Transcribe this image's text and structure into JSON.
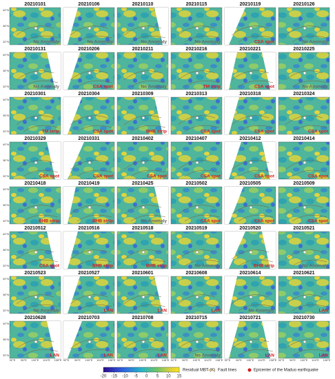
{
  "figure": {
    "lat_labels": [
      "40°N",
      "36°N",
      "32°N"
    ],
    "lon_labels": [
      "92°E",
      "96°E",
      "100°E",
      "104°E",
      "108°E"
    ],
    "anomaly_color": "#d7191c",
    "no_anomaly_color": "#666666",
    "panels": [
      {
        "date": "20210101",
        "label": "No Anomaly"
      },
      {
        "date": "20210106",
        "label": "No Anomaly"
      },
      {
        "date": "20210110",
        "label": "No Anomaly"
      },
      {
        "date": "20210115",
        "label": "No Anomaly"
      },
      {
        "date": "20210119",
        "label": "CSA spot"
      },
      {
        "date": "20210126",
        "label": "No Anomaly"
      },
      {
        "date": "20210131",
        "label": "No Anomaly"
      },
      {
        "date": "20210206",
        "label": "CSA spot"
      },
      {
        "date": "20210211",
        "label": "No Anomaly"
      },
      {
        "date": "20210216",
        "label": "TM strip"
      },
      {
        "date": "20210221",
        "label": "CSA spot"
      },
      {
        "date": "20210225",
        "label": "No Anomaly"
      },
      {
        "date": "20210301",
        "label": "TM strip"
      },
      {
        "date": "20210304",
        "label": "CSA spot"
      },
      {
        "date": "20210309",
        "label": "BHB strip"
      },
      {
        "date": "20210313",
        "label": "CSA spot"
      },
      {
        "date": "20210318",
        "label": "CSA spot"
      },
      {
        "date": "20210324",
        "label": "CSA spot"
      },
      {
        "date": "20210329",
        "label": "CSA spot"
      },
      {
        "date": "20210331",
        "label": "CSA spot"
      },
      {
        "date": "20210402",
        "label": "CSA spot"
      },
      {
        "date": "20210407",
        "label": "CSA spot"
      },
      {
        "date": "20210412",
        "label": "CSA spot"
      },
      {
        "date": "20210414",
        "label": "CSA spot"
      },
      {
        "date": "20210418",
        "label": "BHB strip"
      },
      {
        "date": "20210419",
        "label": "BHB strip"
      },
      {
        "date": "20210425",
        "label": "No Anomaly"
      },
      {
        "date": "20210502",
        "label": "CSA spot"
      },
      {
        "date": "20210505",
        "label": "CSA spot"
      },
      {
        "date": "20210509",
        "label": "CSA spot"
      },
      {
        "date": "20210512",
        "label": "CSA spot"
      },
      {
        "date": "20210516",
        "label": "BHB strip"
      },
      {
        "date": "20210518",
        "label": "BHB strip"
      },
      {
        "date": "20210519",
        "label": "No Anomaly"
      },
      {
        "date": "20210520",
        "label": "BHB strip"
      },
      {
        "date": "20210521",
        "label": "No Anomaly",
        "date_color": "#d7191c"
      },
      {
        "date": "20210523",
        "label": "No Anomaly"
      },
      {
        "date": "20210527",
        "label": "LAN"
      },
      {
        "date": "20210601",
        "label": "LAN"
      },
      {
        "date": "20210608",
        "label": "LAN"
      },
      {
        "date": "20210614",
        "label": "No Anomaly"
      },
      {
        "date": "20210621",
        "label": "LAN"
      },
      {
        "date": "20210628",
        "label": "LAN"
      },
      {
        "date": "20210703",
        "label": "LAN"
      },
      {
        "date": "20210708",
        "label": "LAN"
      },
      {
        "date": "20210715",
        "label": "No Anomaly"
      },
      {
        "date": "20210721",
        "label": "LAN"
      },
      {
        "date": "20210730",
        "label": "LAN"
      }
    ],
    "colorbar": {
      "label": "Residual MBT (K)",
      "range": [
        -20,
        15
      ],
      "ticks": [
        -20,
        -15,
        -10,
        -5,
        0,
        5,
        10,
        15
      ]
    },
    "legend": {
      "fault": "Fault lines",
      "epicenter": "Epicenter of the Maduo earthquake"
    }
  }
}
